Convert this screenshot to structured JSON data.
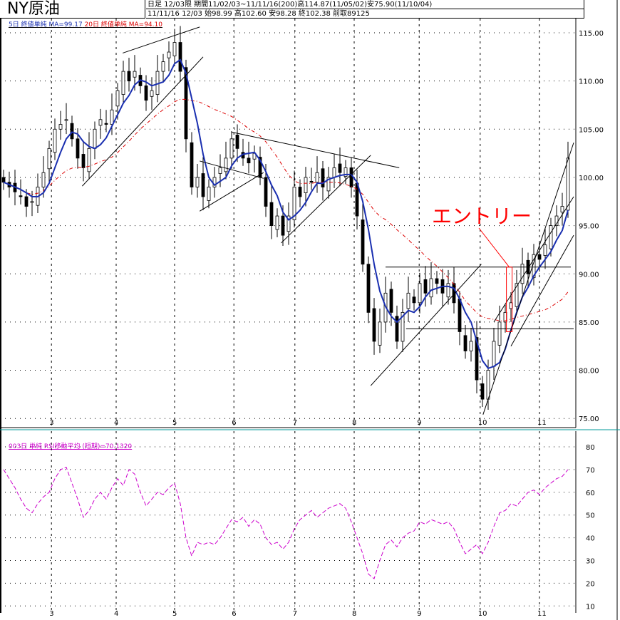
{
  "header": {
    "title": "NY原油",
    "row1": "日足  12/03限  期間11/02/03~11/11/16(200)高114.87(11/05/02)安75.90(11/10/04)",
    "row2": "11/11/16 12/03 始98.99 高102.60 安98.28 終102.38 前取89125"
  },
  "legend": {
    "ma5": "5日 終値単純 MA=99.17",
    "ma20": "20日 終値単純 MA=94.10",
    "rsi": "003日 単純 RSI移動平均 (短期)=70.1320"
  },
  "colors": {
    "candle": "#000000",
    "ma5": "#1a2fb0",
    "ma20": "#dd0000",
    "rsi": "#cc00cc",
    "annotation": "#ff0000",
    "separator": "#009999"
  },
  "chart_data": [
    {
      "type": "candlestick",
      "ylim": [
        75,
        115
      ],
      "yticks": [
        "115.00",
        "110.00",
        "105.00",
        "100.00",
        "95.00",
        "90.00",
        "85.00",
        "80.00",
        "75.00"
      ],
      "xticks": [
        {
          "label": "3",
          "i": 8.4
        },
        {
          "label": "4",
          "i": 19.75
        },
        {
          "label": "5",
          "i": 30
        },
        {
          "label": "6",
          "i": 40.4
        },
        {
          "label": "7",
          "i": 51.1
        },
        {
          "label": "8",
          "i": 61.5
        },
        {
          "label": "9",
          "i": 72.9
        },
        {
          "label": "10",
          "i": 83.6
        },
        {
          "label": "11",
          "i": 94
        }
      ],
      "close": [
        99.5,
        99,
        98.5,
        98,
        97,
        97.5,
        99,
        100.5,
        103,
        105,
        105.5,
        106,
        104,
        102,
        101,
        103,
        105,
        106,
        105.5,
        107,
        109,
        111,
        110,
        111,
        109.5,
        108,
        109,
        111,
        112,
        113,
        114,
        111,
        104,
        99,
        100,
        98,
        99,
        100,
        101,
        102,
        104,
        103,
        102,
        101.5,
        102.5,
        100,
        97,
        95,
        96,
        94,
        96,
        99,
        98,
        100,
        99.5,
        100.5,
        99,
        100,
        101,
        100.5,
        101,
        99,
        96,
        91,
        86,
        83,
        85,
        88,
        86,
        83,
        86,
        88,
        87,
        89,
        88,
        89.5,
        89,
        88,
        89,
        87,
        84,
        82,
        83,
        79,
        77,
        80,
        83,
        85,
        86,
        87,
        89,
        91,
        90,
        92,
        91.5,
        93,
        95,
        96,
        97,
        102
      ],
      "ma_periods": [
        5,
        20
      ],
      "trendlines": [
        [
          20.9,
          112.9,
          34.4,
          115.6
        ],
        [
          13.8,
          99.1,
          35,
          112.5
        ],
        [
          34.4,
          101.7,
          45.6,
          99.9
        ],
        [
          34.4,
          96.5,
          45.6,
          100.5
        ],
        [
          40,
          104.7,
          69.4,
          101
        ],
        [
          48.7,
          93.2,
          64.4,
          102.3
        ],
        [
          67,
          90.7,
          99.5,
          90.7
        ],
        [
          70.6,
          84.3,
          100,
          84.3
        ],
        [
          64.4,
          78.4,
          83.8,
          91
        ],
        [
          84.1,
          75.4,
          100,
          103.6
        ],
        [
          86,
          85,
          100,
          98
        ],
        [
          89,
          82.5,
          100,
          94
        ]
      ],
      "annotation": {
        "text": "エントリー",
        "i": 88.7,
        "low": 84,
        "high": 90.7
      }
    },
    {
      "type": "line",
      "name": "RSI",
      "ylim": [
        10,
        80
      ],
      "yticks": [
        "80",
        "70",
        "60",
        "50",
        "40",
        "30",
        "20",
        "10"
      ],
      "values": [
        70,
        66,
        62,
        57,
        53,
        51,
        55,
        58,
        60,
        66,
        70,
        71,
        64,
        57,
        49,
        52,
        57,
        60,
        57,
        62,
        66,
        63,
        70,
        68,
        60,
        54,
        57,
        60,
        59,
        62,
        64,
        55,
        40,
        32,
        38,
        37,
        38,
        37,
        40,
        44,
        48,
        47,
        49,
        45,
        48,
        46,
        40,
        37,
        38,
        35,
        38,
        44,
        48,
        50,
        52,
        49,
        51,
        53,
        54,
        55,
        53,
        47,
        40,
        33,
        24,
        22,
        30,
        37,
        39,
        36,
        40,
        42,
        43,
        47,
        46,
        48,
        47,
        46,
        47,
        44,
        38,
        33,
        35,
        37,
        33,
        38,
        45,
        51,
        52,
        55,
        54,
        57,
        60,
        61,
        59,
        62,
        64,
        66,
        67,
        70
      ]
    }
  ]
}
